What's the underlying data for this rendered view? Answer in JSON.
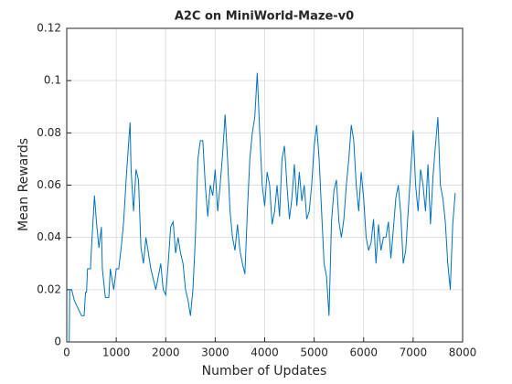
{
  "chart_data": {
    "type": "line",
    "title": "A2C on MiniWorld-Maze-v0",
    "xlabel": "Number of Updates",
    "ylabel": "Mean Rewards",
    "color": "#0072bd",
    "grid": true,
    "x": [
      0,
      50,
      60,
      100,
      150,
      250,
      300,
      350,
      380,
      400,
      420,
      480,
      500,
      530,
      560,
      600,
      650,
      700,
      720,
      780,
      850,
      880,
      950,
      1000,
      1050,
      1100,
      1150,
      1200,
      1250,
      1280,
      1300,
      1350,
      1400,
      1450,
      1500,
      1550,
      1600,
      1700,
      1800,
      1900,
      1950,
      2000,
      2050,
      2100,
      2150,
      2200,
      2250,
      2300,
      2350,
      2400,
      2450,
      2500,
      2550,
      2600,
      2650,
      2700,
      2750,
      2800,
      2850,
      2900,
      2950,
      3000,
      3050,
      3100,
      3150,
      3200,
      3250,
      3300,
      3350,
      3400,
      3450,
      3500,
      3550,
      3600,
      3650,
      3700,
      3750,
      3800,
      3850,
      3900,
      3950,
      4000,
      4050,
      4100,
      4150,
      4200,
      4250,
      4300,
      4350,
      4400,
      4450,
      4500,
      4550,
      4600,
      4650,
      4700,
      4750,
      4800,
      4850,
      4900,
      4950,
      5000,
      5050,
      5100,
      5150,
      5200,
      5250,
      5300,
      5350,
      5400,
      5450,
      5500,
      5550,
      5600,
      5650,
      5700,
      5750,
      5800,
      5850,
      5900,
      5950,
      6000,
      6050,
      6100,
      6150,
      6200,
      6250,
      6300,
      6350,
      6400,
      6450,
      6500,
      6550,
      6600,
      6650,
      6700,
      6750,
      6800,
      6850,
      6900,
      6950,
      7000,
      7050,
      7100,
      7150,
      7200,
      7250,
      7300,
      7350,
      7400,
      7450,
      7500,
      7550,
      7600,
      7650,
      7700,
      7750,
      7800,
      7850
    ],
    "values": [
      0,
      0,
      0.02,
      0.02,
      0.016,
      0.012,
      0.01,
      0.01,
      0.019,
      0.019,
      0.028,
      0.028,
      0.036,
      0.046,
      0.056,
      0.046,
      0.036,
      0.044,
      0.028,
      0.017,
      0.017,
      0.028,
      0.02,
      0.028,
      0.028,
      0.036,
      0.046,
      0.062,
      0.076,
      0.084,
      0.066,
      0.05,
      0.066,
      0.062,
      0.036,
      0.03,
      0.04,
      0.028,
      0.02,
      0.03,
      0.02,
      0.018,
      0.03,
      0.044,
      0.046,
      0.034,
      0.04,
      0.034,
      0.03,
      0.02,
      0.016,
      0.01,
      0.02,
      0.04,
      0.07,
      0.077,
      0.077,
      0.06,
      0.048,
      0.06,
      0.056,
      0.066,
      0.05,
      0.06,
      0.072,
      0.087,
      0.07,
      0.05,
      0.04,
      0.035,
      0.045,
      0.035,
      0.03,
      0.026,
      0.05,
      0.07,
      0.08,
      0.086,
      0.103,
      0.08,
      0.06,
      0.052,
      0.065,
      0.06,
      0.045,
      0.05,
      0.06,
      0.048,
      0.07,
      0.075,
      0.06,
      0.047,
      0.055,
      0.068,
      0.052,
      0.065,
      0.054,
      0.06,
      0.047,
      0.05,
      0.06,
      0.075,
      0.083,
      0.07,
      0.05,
      0.03,
      0.025,
      0.01,
      0.046,
      0.058,
      0.062,
      0.046,
      0.04,
      0.047,
      0.06,
      0.07,
      0.083,
      0.077,
      0.06,
      0.05,
      0.065,
      0.055,
      0.04,
      0.035,
      0.038,
      0.047,
      0.03,
      0.045,
      0.035,
      0.04,
      0.04,
      0.046,
      0.032,
      0.043,
      0.055,
      0.06,
      0.049,
      0.03,
      0.035,
      0.05,
      0.065,
      0.081,
      0.06,
      0.05,
      0.066,
      0.06,
      0.05,
      0.068,
      0.045,
      0.063,
      0.075,
      0.086,
      0.06,
      0.055,
      0.046,
      0.03,
      0.02,
      0.045,
      0.057
    ],
    "xlim": [
      0,
      8000
    ],
    "xticks": [
      0,
      1000,
      2000,
      3000,
      4000,
      5000,
      6000,
      7000,
      8000
    ],
    "ylim": [
      0,
      0.12
    ],
    "yticks": [
      0,
      0.02,
      0.04,
      0.06,
      0.08,
      0.1,
      0.12
    ]
  }
}
